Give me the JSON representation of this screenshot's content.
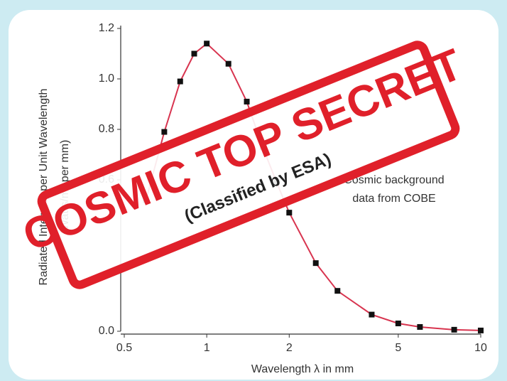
{
  "chart_data": {
    "type": "line",
    "x": [
      0.6,
      0.7,
      0.8,
      0.9,
      1.0,
      1.2,
      1.4,
      1.6,
      1.8,
      2.0,
      2.5,
      3,
      4,
      5,
      6,
      8,
      10
    ],
    "values": [
      0.52,
      0.79,
      0.99,
      1.1,
      1.14,
      1.06,
      0.91,
      0.73,
      0.59,
      0.47,
      0.27,
      0.16,
      0.066,
      0.031,
      0.017,
      0.006,
      0.003
    ],
    "color": "#d8344f",
    "marker_color": "#111111",
    "xlim": [
      0.5,
      10
    ],
    "xticks": [
      0.5,
      1,
      2,
      5,
      10
    ],
    "xscale": "log",
    "ylim": [
      0,
      1.2
    ],
    "yticks": [
      {
        "value": 0,
        "label": "0.0"
      },
      0.6,
      0.8,
      {
        "value": 1,
        "label": "1.0"
      },
      1.2
    ],
    "xlabel": "Wavelength λ in mm",
    "ylabel": [
      "Radiated Intensity per Unit Wavelength",
      "(Watts/m² per mm)"
    ],
    "annotation": [
      "Cosmic background",
      "data from COBE"
    ]
  },
  "stamp": {
    "title": "COSMIC TOP SECRET",
    "subtitle": "(Classified by ESA)"
  }
}
